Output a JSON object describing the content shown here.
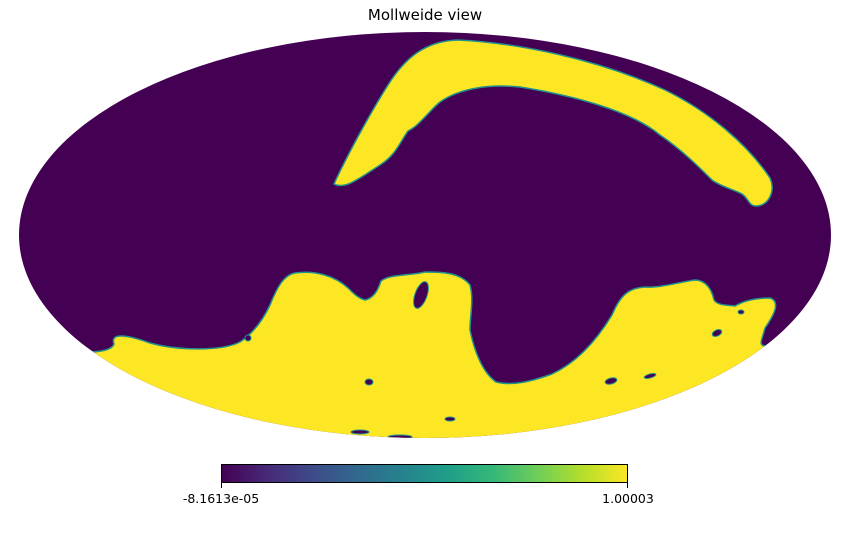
{
  "title": "Mollweide view",
  "projection": "mollweide",
  "colormap": {
    "name": "viridis",
    "stops": [
      "#440154",
      "#482878",
      "#3e4a89",
      "#31688e",
      "#26828e",
      "#1f9e89",
      "#35b779",
      "#6ece58",
      "#b5de2b",
      "#fde725"
    ]
  },
  "colorbar": {
    "min_label": "-8.1613e-05",
    "max_label": "1.00003"
  },
  "colors": {
    "low": "#440154",
    "high": "#fde725",
    "edge": "#21918c"
  }
}
